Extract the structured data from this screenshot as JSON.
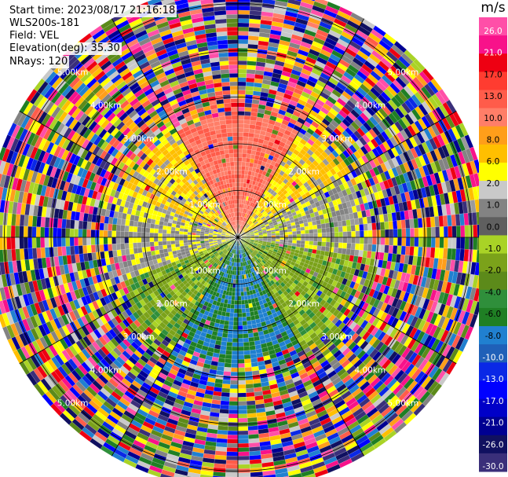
{
  "info": {
    "start_time": "Start time: 2023/08/17 21:16:18",
    "site": "WLS200s-181",
    "field": "Field: VEL",
    "elevation": "Elevation(deg): 35.30",
    "nrays": "NRays: 120"
  },
  "colorbar": {
    "unit": "m/s",
    "ticks": [
      "26.0",
      "21.0",
      "17.0",
      "13.0",
      "10.0",
      "8.0",
      "6.0",
      "2.0",
      "1.0",
      "0.0",
      "-1.0",
      "-2.0",
      "-4.0",
      "-6.0",
      "-8.0",
      "-10.0",
      "-13.0",
      "-17.0",
      "-21.0",
      "-26.0",
      "-30.0"
    ],
    "colors": [
      "#ff4fa8",
      "#f8128a",
      "#ee0012",
      "#ff3c30",
      "#ff5c4a",
      "#ff7e68",
      "#ff9e1a",
      "#ffbf00",
      "#ffff00",
      "#c9c9c9",
      "#838383",
      "#5f5f5f",
      "#a9d326",
      "#7ba21a",
      "#5c8a1a",
      "#2f8f3b",
      "#1f7f24",
      "#2080d0",
      "#1f60b8",
      "#0a28e6",
      "#0000ff",
      "#0000c8",
      "#000092",
      "#101060",
      "#3a2f7a"
    ]
  },
  "chart_data": {
    "type": "ppi_radar",
    "field": "VEL",
    "unit": "m/s",
    "nrays": 120,
    "range_rings_km": [
      1.0,
      2.0,
      3.0,
      4.0,
      5.0
    ],
    "ring_labels": [
      "1.00km",
      "2.00km",
      "3.00km",
      "4.00km",
      "5.00km"
    ],
    "max_range_km": 5.4,
    "sectors": [
      {
        "az_from": 0,
        "az_to": 30,
        "dominant_velocity_ms": 8.0
      },
      {
        "az_from": 30,
        "az_to": 60,
        "dominant_velocity_ms": 2.0
      },
      {
        "az_from": 60,
        "az_to": 100,
        "dominant_velocity_ms": 0.0
      },
      {
        "az_from": 100,
        "az_to": 150,
        "dominant_velocity_ms": -3.0
      },
      {
        "az_from": 150,
        "az_to": 210,
        "dominant_velocity_ms": -8.0
      },
      {
        "az_from": 210,
        "az_to": 250,
        "dominant_velocity_ms": -3.0
      },
      {
        "az_from": 250,
        "az_to": 290,
        "dominant_velocity_ms": 0.5
      },
      {
        "az_from": 290,
        "az_to": 330,
        "dominant_velocity_ms": 2.0
      },
      {
        "az_from": 330,
        "az_to": 360,
        "dominant_velocity_ms": 8.0
      }
    ],
    "noise_beyond_km": 2.6
  }
}
